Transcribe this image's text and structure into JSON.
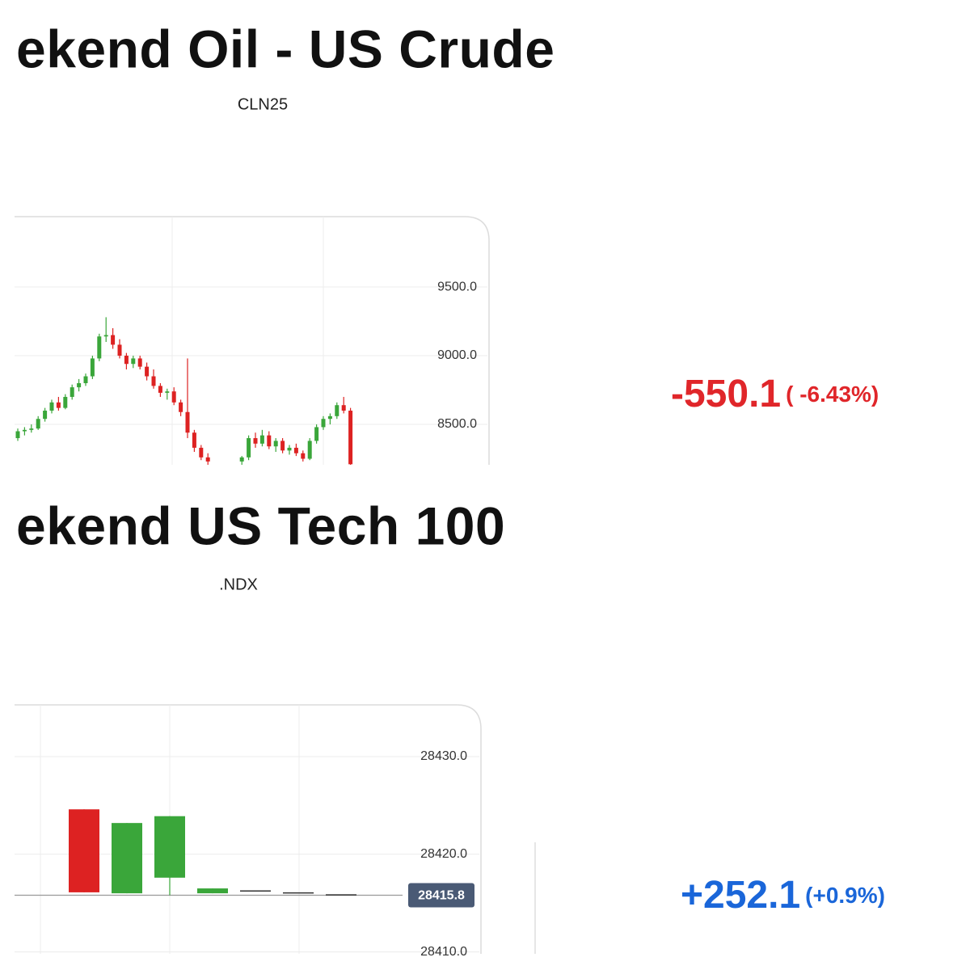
{
  "chart_data": [
    {
      "type": "candlestick",
      "title": "ekend Oil - US Crude",
      "subtitle": "CLN25",
      "change": "-550.1",
      "change_pct": "( -6.43%)",
      "change_color": "#e0262a",
      "up_color": "#3aa63a",
      "down_color": "#dd2222",
      "grid": true,
      "ylim": [
        8206,
        10012
      ],
      "yticks": [
        {
          "value": 9500,
          "label": "9500.0"
        },
        {
          "value": 9000,
          "label": "9000.0"
        },
        {
          "value": 8500,
          "label": "8500.0"
        }
      ],
      "candles": [
        {
          "open": 8400,
          "high": 8470,
          "low": 8380,
          "close": 8450
        },
        {
          "open": 8450,
          "high": 8480,
          "low": 8420,
          "close": 8460
        },
        {
          "open": 8460,
          "high": 8500,
          "low": 8440,
          "close": 8470
        },
        {
          "open": 8470,
          "high": 8560,
          "low": 8460,
          "close": 8540
        },
        {
          "open": 8540,
          "high": 8620,
          "low": 8520,
          "close": 8600
        },
        {
          "open": 8600,
          "high": 8680,
          "low": 8580,
          "close": 8660
        },
        {
          "open": 8660,
          "high": 8700,
          "low": 8600,
          "close": 8620
        },
        {
          "open": 8620,
          "high": 8720,
          "low": 8610,
          "close": 8700
        },
        {
          "open": 8700,
          "high": 8790,
          "low": 8680,
          "close": 8770
        },
        {
          "open": 8770,
          "high": 8830,
          "low": 8740,
          "close": 8800
        },
        {
          "open": 8800,
          "high": 8870,
          "low": 8780,
          "close": 8850
        },
        {
          "open": 8850,
          "high": 9000,
          "low": 8830,
          "close": 8980
        },
        {
          "open": 8980,
          "high": 9160,
          "low": 8960,
          "close": 9140
        },
        {
          "open": 9140,
          "high": 9280,
          "low": 9100,
          "close": 9150
        },
        {
          "open": 9150,
          "high": 9200,
          "low": 9050,
          "close": 9080
        },
        {
          "open": 9080,
          "high": 9120,
          "low": 8980,
          "close": 9000
        },
        {
          "open": 9000,
          "high": 9020,
          "low": 8900,
          "close": 8940
        },
        {
          "open": 8940,
          "high": 9000,
          "low": 8910,
          "close": 8980
        },
        {
          "open": 8980,
          "high": 9000,
          "low": 8900,
          "close": 8920
        },
        {
          "open": 8920,
          "high": 8950,
          "low": 8820,
          "close": 8850
        },
        {
          "open": 8850,
          "high": 8900,
          "low": 8760,
          "close": 8780
        },
        {
          "open": 8780,
          "high": 8800,
          "low": 8700,
          "close": 8730
        },
        {
          "open": 8730,
          "high": 8760,
          "low": 8680,
          "close": 8740
        },
        {
          "open": 8740,
          "high": 8770,
          "low": 8640,
          "close": 8660
        },
        {
          "open": 8660,
          "high": 8680,
          "low": 8560,
          "close": 8590
        },
        {
          "open": 8590,
          "high": 8980,
          "low": 8400,
          "close": 8440
        },
        {
          "open": 8440,
          "high": 8460,
          "low": 8300,
          "close": 8330
        },
        {
          "open": 8330,
          "high": 8350,
          "low": 8240,
          "close": 8260
        },
        {
          "open": 8260,
          "high": 8290,
          "low": 8200,
          "close": 8230
        },
        null,
        null,
        null,
        null,
        {
          "open": 8230,
          "high": 8270,
          "low": 8200,
          "close": 8260
        },
        {
          "open": 8260,
          "high": 8420,
          "low": 8240,
          "close": 8400
        },
        {
          "open": 8400,
          "high": 8440,
          "low": 8330,
          "close": 8360
        },
        {
          "open": 8360,
          "high": 8460,
          "low": 8340,
          "close": 8420
        },
        {
          "open": 8420,
          "high": 8450,
          "low": 8320,
          "close": 8340
        },
        {
          "open": 8340,
          "high": 8400,
          "low": 8300,
          "close": 8380
        },
        {
          "open": 8380,
          "high": 8400,
          "low": 8290,
          "close": 8310
        },
        {
          "open": 8310,
          "high": 8350,
          "low": 8280,
          "close": 8330
        },
        {
          "open": 8330,
          "high": 8360,
          "low": 8270,
          "close": 8290
        },
        {
          "open": 8290,
          "high": 8310,
          "low": 8230,
          "close": 8250
        },
        {
          "open": 8250,
          "high": 8400,
          "low": 8240,
          "close": 8380
        },
        {
          "open": 8380,
          "high": 8500,
          "low": 8360,
          "close": 8480
        },
        {
          "open": 8480,
          "high": 8560,
          "low": 8460,
          "close": 8540
        },
        {
          "open": 8540,
          "high": 8580,
          "low": 8500,
          "close": 8560
        },
        {
          "open": 8560,
          "high": 8660,
          "low": 8540,
          "close": 8640
        },
        {
          "open": 8640,
          "high": 8700,
          "low": 8580,
          "close": 8600
        },
        {
          "open": 8600,
          "high": 8620,
          "low": 8200,
          "close": 8210
        }
      ]
    },
    {
      "type": "candlestick",
      "title": "ekend US Tech 100",
      "subtitle": ".NDX",
      "change": "+252.1",
      "change_pct": "(+0.9%)",
      "change_color": "#1a66d9",
      "up_color": "#3aa63a",
      "down_color": "#dd2222",
      "grid": true,
      "ylim": [
        28409.8,
        28435.3
      ],
      "yticks": [
        {
          "value": 28430,
          "label": "28430.0"
        },
        {
          "value": 28420,
          "label": "28420.0"
        },
        {
          "value": 28410,
          "label": "28410.0"
        }
      ],
      "last": 28415.8,
      "candles": [
        {
          "open": 28424.6,
          "high": 28424.6,
          "low": 28416.1,
          "close": 28416.1
        },
        {
          "open": 28416.0,
          "high": 28423.2,
          "low": 28416.0,
          "close": 28423.2
        },
        {
          "open": 28417.6,
          "high": 28423.9,
          "low": 28415.8,
          "close": 28423.9
        },
        {
          "open": 28416.0,
          "high": 28416.5,
          "low": 28416.0,
          "close": 28416.5
        },
        {
          "open": 28416.3,
          "high": 28416.3,
          "low": 28416.3,
          "close": 28416.3
        },
        {
          "open": 28416.1,
          "high": 28416.1,
          "low": 28416.1,
          "close": 28416.1
        },
        {
          "open": 28415.9,
          "high": 28415.9,
          "low": 28415.9,
          "close": 28415.9
        }
      ]
    }
  ]
}
